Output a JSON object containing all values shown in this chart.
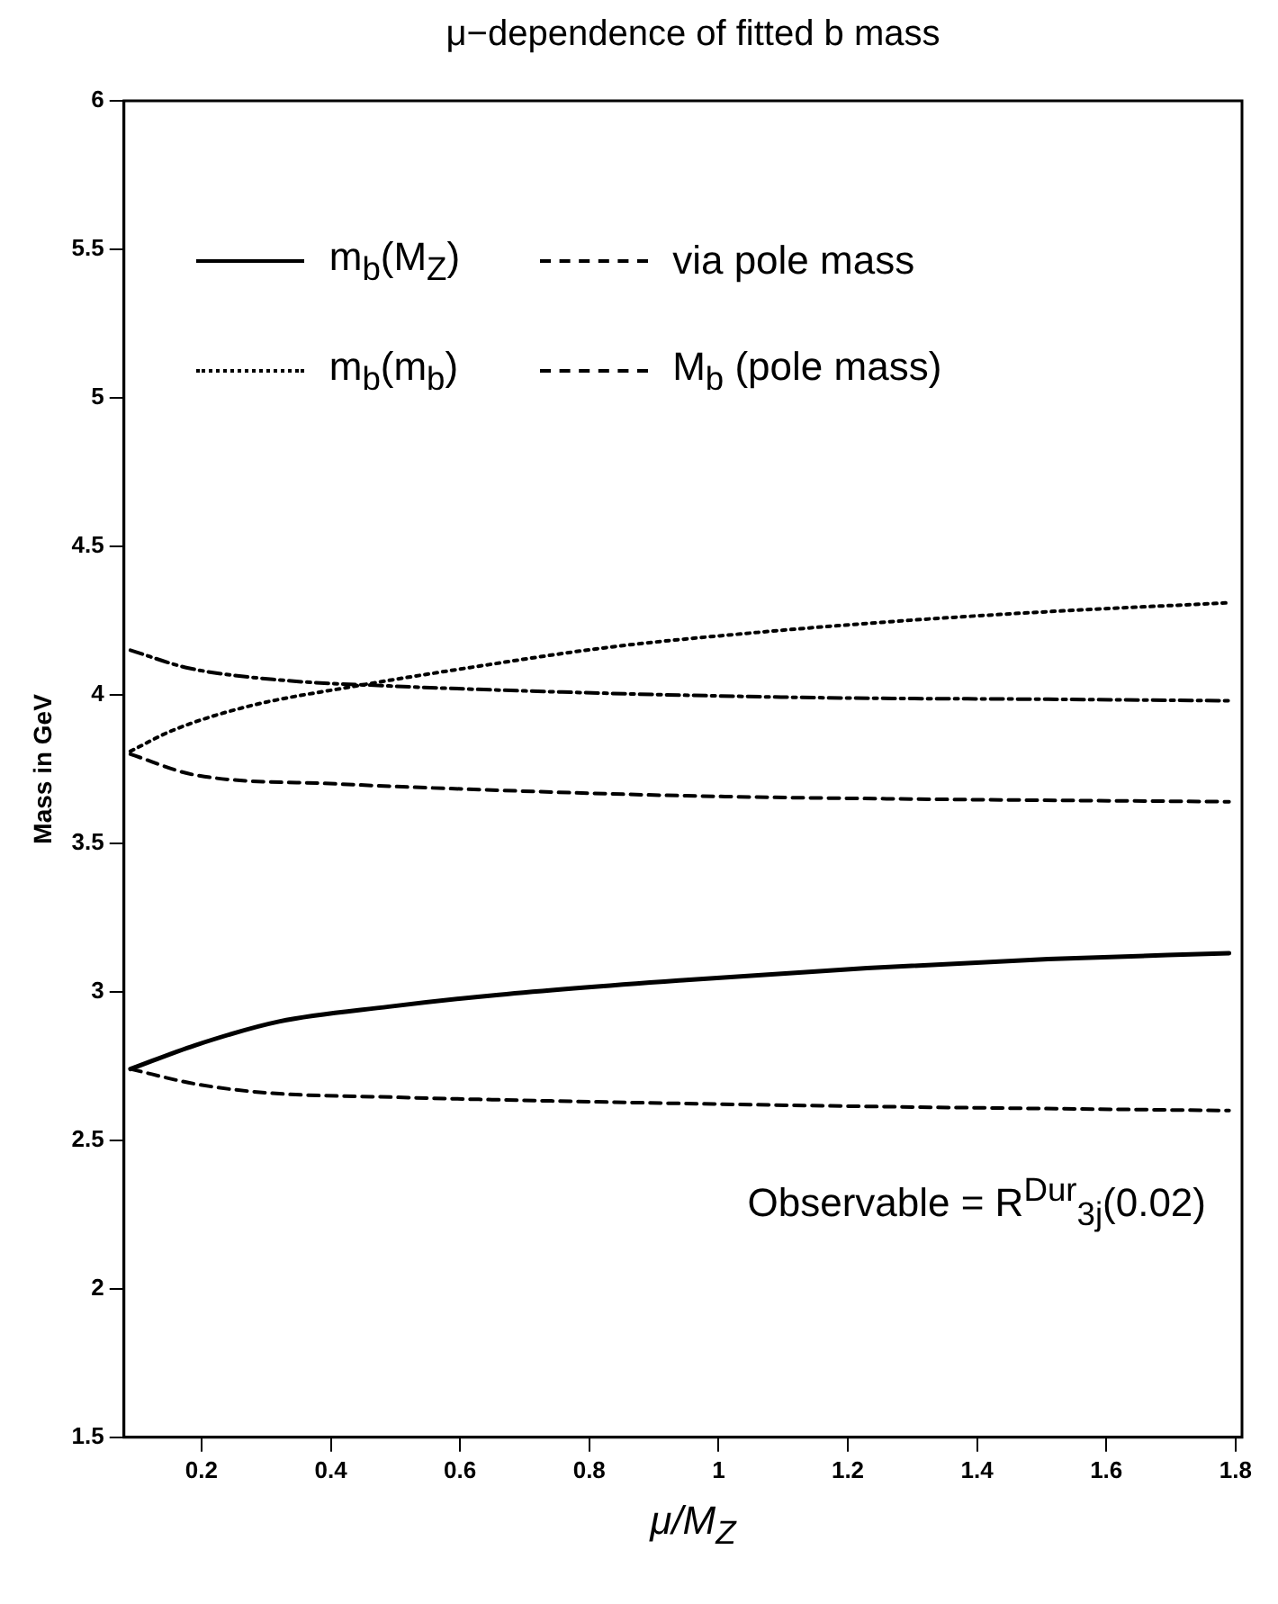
{
  "chart_data": {
    "type": "line",
    "title": "μ−dependence of fitted b mass",
    "xlabel": "μ/M$_{Z}$",
    "ylabel": "Mass in GeV",
    "xlim": [
      0.08,
      1.81
    ],
    "xticks": [
      0.2,
      0.4,
      0.6,
      0.8,
      1,
      1.2,
      1.4,
      1.6,
      1.8
    ],
    "ylim": [
      1.5,
      6
    ],
    "yticks": [
      1.5,
      2,
      2.5,
      3,
      3.5,
      4,
      4.5,
      5,
      5.5,
      6
    ],
    "grid": false,
    "legend": "top",
    "marker": "none",
    "annotations": [
      "Observable = R$^{Dur}$$_{3j}$(0.02)"
    ],
    "series": [
      {
        "name": "m$_{b}$(M$_{Z}$)",
        "color": "#000000",
        "line_style": "solid",
        "x": [
          0.09,
          0.19,
          0.32,
          0.49,
          0.66,
          0.95,
          1.23,
          1.51,
          1.79
        ],
        "values": [
          2.74,
          2.82,
          2.9,
          2.95,
          2.99,
          3.04,
          3.08,
          3.11,
          3.13
        ]
      },
      {
        "name": "via pole mass",
        "color": "#000000",
        "line_style": "dashed",
        "x": [
          0.09,
          0.19,
          0.3,
          0.5,
          0.8,
          1.2,
          1.79
        ],
        "values": [
          2.74,
          2.69,
          2.66,
          2.645,
          2.63,
          2.615,
          2.6
        ]
      },
      {
        "name": "m$_{b}$(m$_{b}$)",
        "color": "#000000",
        "line_style": "dotted",
        "x": [
          0.09,
          0.155,
          0.27,
          0.44,
          0.61,
          0.83,
          1.06,
          1.29,
          1.51,
          1.79
        ],
        "values": [
          3.81,
          3.88,
          3.96,
          4.03,
          4.09,
          4.16,
          4.21,
          4.25,
          4.28,
          4.31
        ]
      },
      {
        "color": "#000000",
        "line_style": "dashed",
        "x": [
          0.09,
          0.19,
          0.41,
          0.64,
          0.95,
          1.26,
          1.79
        ],
        "values": [
          3.8,
          3.73,
          3.7,
          3.68,
          3.66,
          3.65,
          3.64
        ]
      },
      {
        "name": "M$_{b}$ (pole mass)",
        "color": "#000000",
        "line_style": "dashdot",
        "x": [
          0.09,
          0.18,
          0.32,
          0.49,
          0.83,
          1.17,
          1.51,
          1.79
        ],
        "values": [
          4.15,
          4.09,
          4.05,
          4.03,
          4.005,
          3.99,
          3.985,
          3.98
        ]
      }
    ]
  }
}
